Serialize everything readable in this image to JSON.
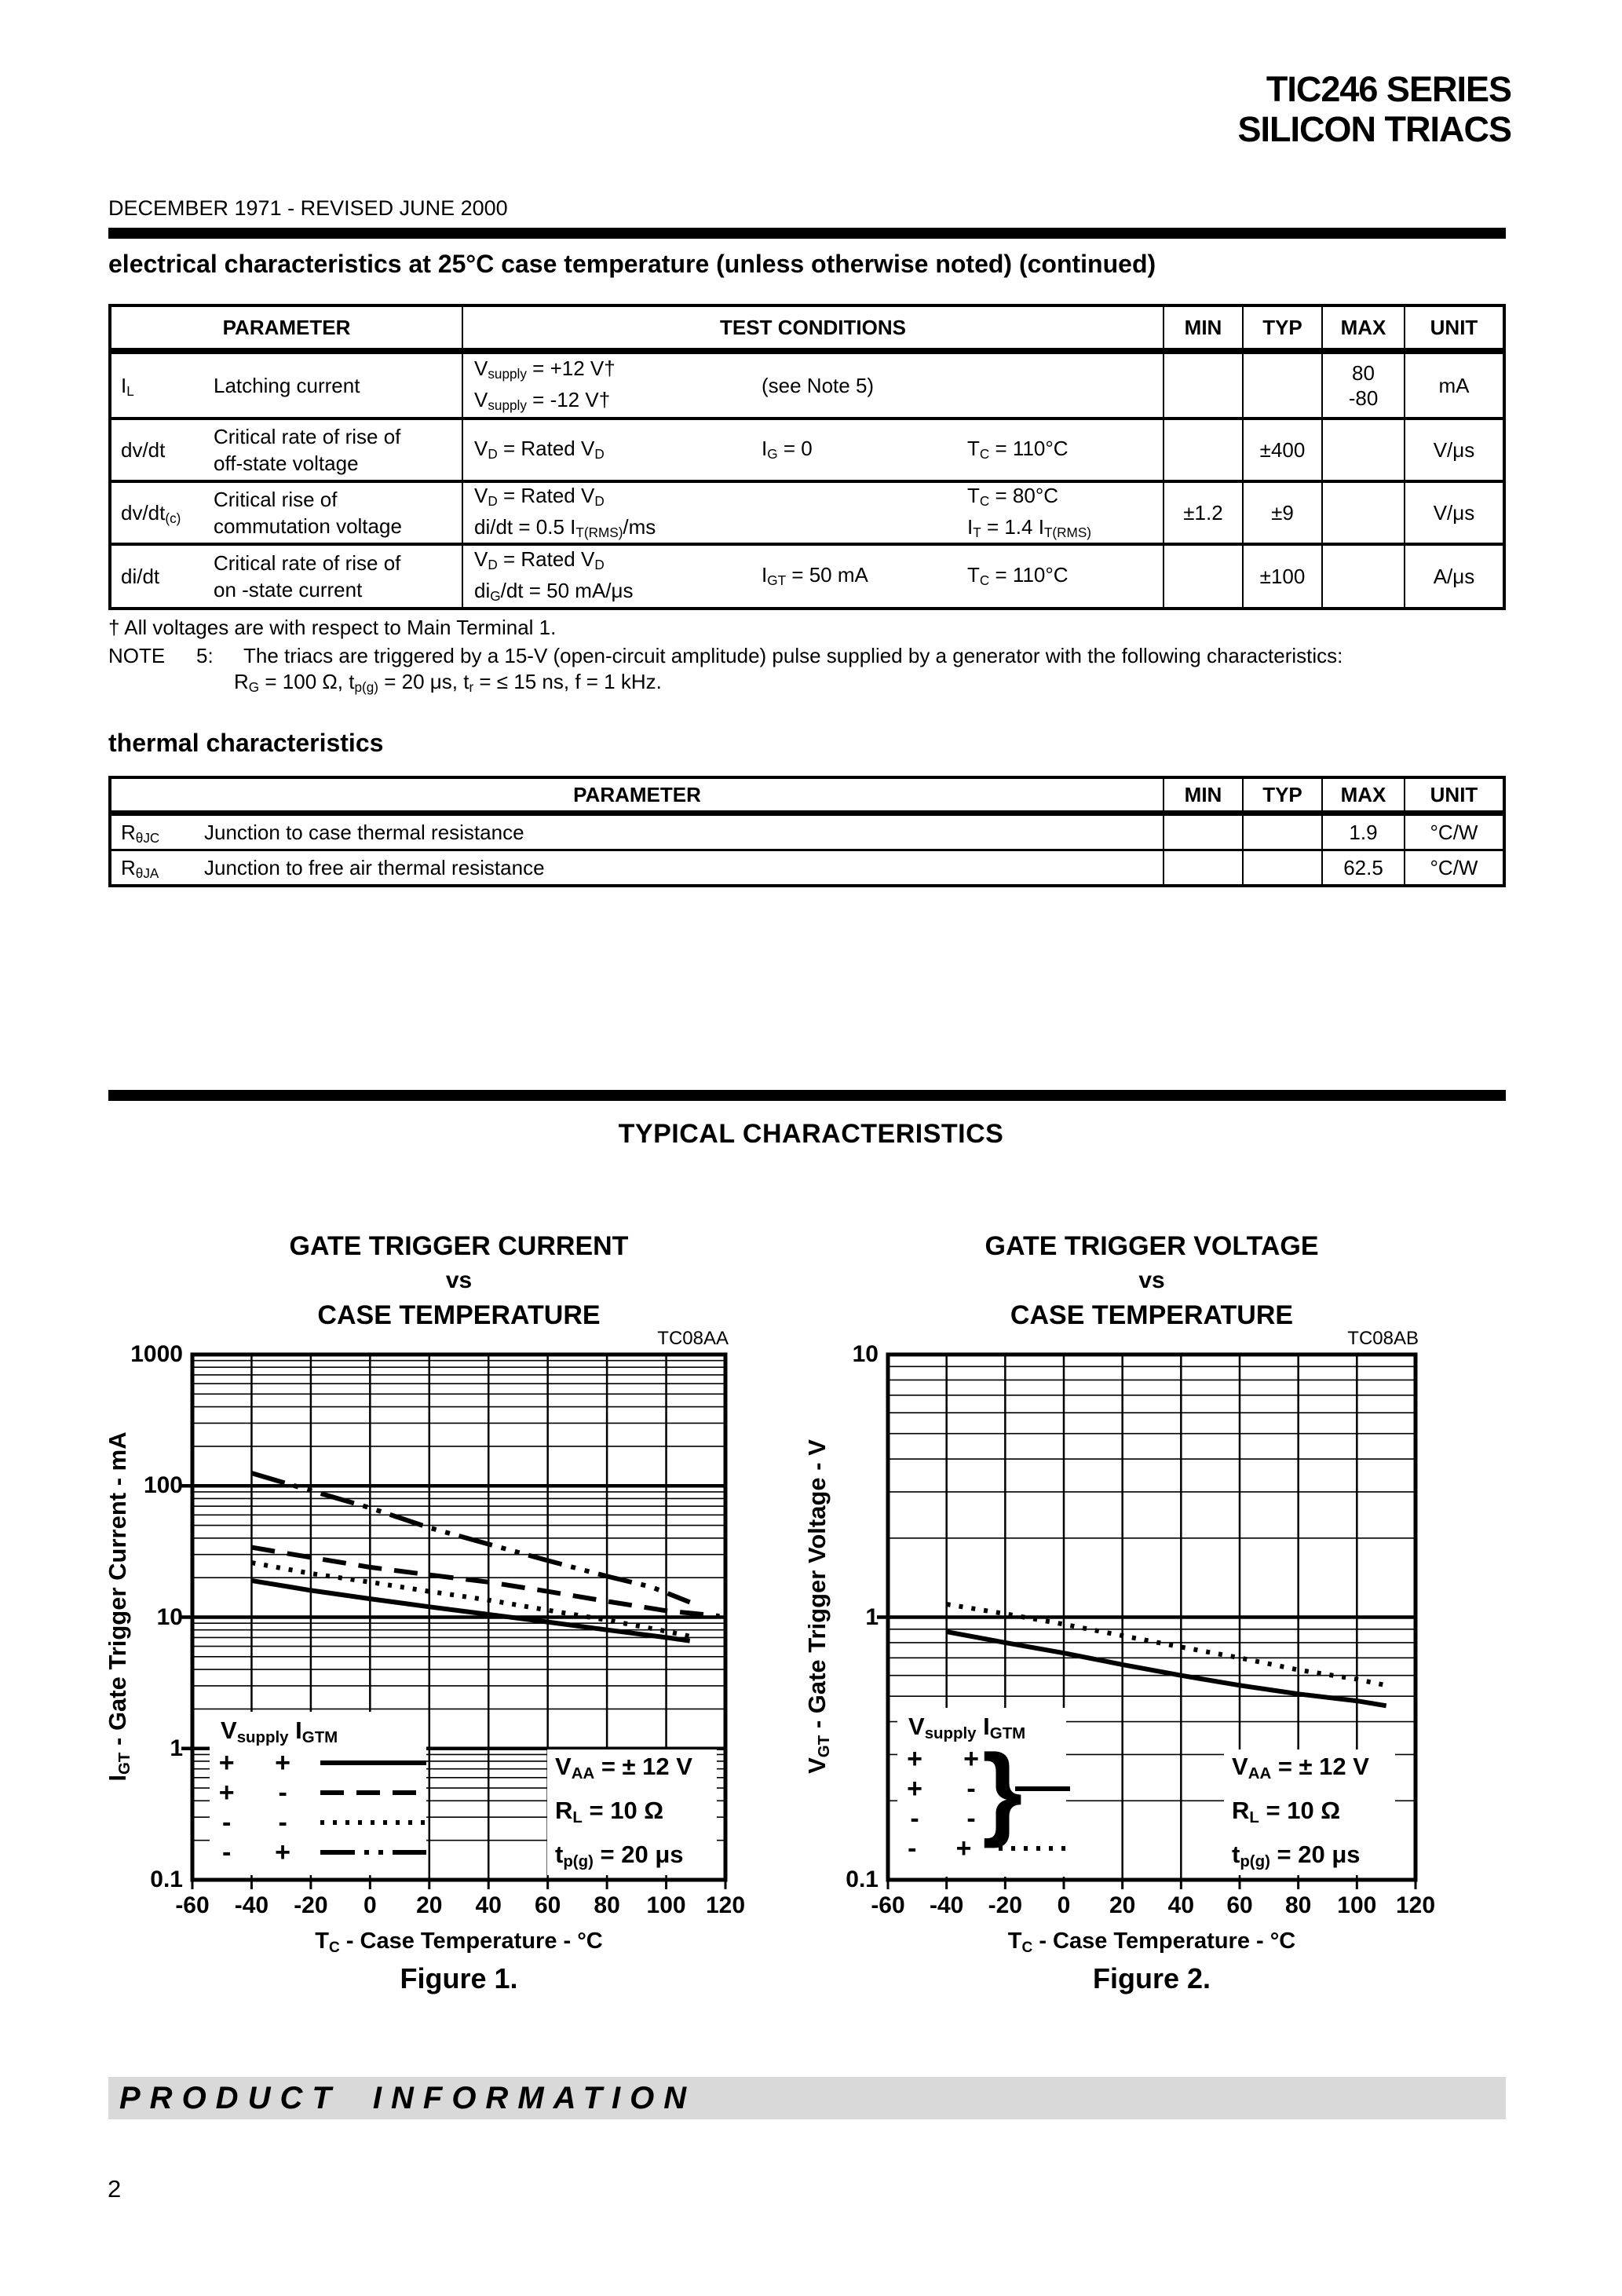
{
  "page": {
    "brand_line1": "TIC246 SERIES",
    "brand_line2": "SILICON TRIACS",
    "revision": "DECEMBER 1971 - REVISED JUNE 2000",
    "footer_banner": "PRODUCT INFORMATION",
    "page_number": "2",
    "colors": {
      "ink": "#000000",
      "footer_bar": "#d9d9d9",
      "paper": "#ffffff"
    }
  },
  "sections": {
    "electrical_title": "electrical characteristics at 25°C case temperature (unless otherwise noted) (continued)",
    "thermal_title": "thermal characteristics",
    "typical_title": "TYPICAL CHARACTERISTICS"
  },
  "electrical_table": {
    "headers": [
      "PARAMETER",
      "TEST CONDITIONS",
      "MIN",
      "TYP",
      "MAX",
      "UNIT"
    ],
    "rows": [
      {
        "symbol": [
          {
            "t": "I"
          },
          {
            "t": "L",
            "sub": true
          }
        ],
        "parameter": [
          "Latching current"
        ],
        "cond_left": [
          [
            {
              "t": "V"
            },
            {
              "t": "supply",
              "sub": true
            },
            {
              "t": " = +12 V†"
            }
          ],
          [
            {
              "t": "V"
            },
            {
              "t": "supply",
              "sub": true
            },
            {
              "t": " =  -12 V†"
            }
          ]
        ],
        "cond_mid": [
          [
            {
              "t": "(see Note 5)"
            }
          ]
        ],
        "cond_right": [],
        "min": [],
        "typ": [],
        "max": [
          "80",
          "-80"
        ],
        "unit": "mA"
      },
      {
        "symbol": [
          {
            "t": "dv/dt"
          }
        ],
        "parameter": [
          "Critical rate of rise of",
          "off-state voltage"
        ],
        "cond_left": [
          [
            {
              "t": "V"
            },
            {
              "t": "D",
              "sub": true
            },
            {
              "t": " = Rated V"
            },
            {
              "t": "D",
              "sub": true
            }
          ]
        ],
        "cond_mid": [
          [
            {
              "t": "I"
            },
            {
              "t": "G",
              "sub": true
            },
            {
              "t": " = 0"
            }
          ]
        ],
        "cond_right": [
          [
            {
              "t": "T"
            },
            {
              "t": "C",
              "sub": true
            },
            {
              "t": " = 110°C"
            }
          ]
        ],
        "min": [],
        "typ": [
          "±400"
        ],
        "max": [],
        "unit": "V/μs"
      },
      {
        "symbol": [
          {
            "t": "dv/dt"
          },
          {
            "t": "(c)",
            "sub": true
          }
        ],
        "parameter": [
          "Critical rise of",
          "commutation voltage"
        ],
        "cond_left": [
          [
            {
              "t": "V"
            },
            {
              "t": "D",
              "sub": true
            },
            {
              "t": " = Rated V"
            },
            {
              "t": "D",
              "sub": true
            }
          ],
          [
            {
              "t": "di/dt = 0.5 I"
            },
            {
              "t": "T(RMS)",
              "sub": true
            },
            {
              "t": "/ms"
            }
          ]
        ],
        "cond_mid": [],
        "cond_right": [
          [
            {
              "t": "T"
            },
            {
              "t": "C",
              "sub": true
            },
            {
              "t": " = 80°C"
            }
          ],
          [
            {
              "t": "I"
            },
            {
              "t": "T",
              "sub": true
            },
            {
              "t": " = 1.4 I"
            },
            {
              "t": "T(RMS)",
              "sub": true
            }
          ]
        ],
        "min": [
          "±1.2"
        ],
        "typ": [
          "±9"
        ],
        "max": [],
        "unit": "V/μs"
      },
      {
        "symbol": [
          {
            "t": "di/dt"
          }
        ],
        "parameter": [
          "Critical rate of rise of",
          "on -state current"
        ],
        "cond_left": [
          [
            {
              "t": "V"
            },
            {
              "t": "D",
              "sub": true
            },
            {
              "t": " = Rated V"
            },
            {
              "t": "D",
              "sub": true
            }
          ],
          [
            {
              "t": "di"
            },
            {
              "t": "G",
              "sub": true
            },
            {
              "t": "/dt = 50 mA/μs"
            }
          ]
        ],
        "cond_mid": [
          [
            {
              "t": "I"
            },
            {
              "t": "GT",
              "sub": true
            },
            {
              "t": " = 50 mA"
            }
          ]
        ],
        "cond_right": [
          [
            {
              "t": "T"
            },
            {
              "t": "C",
              "sub": true
            },
            {
              "t": " = 110°C"
            }
          ]
        ],
        "min": [],
        "typ": [
          "±100"
        ],
        "max": [],
        "unit": "A/μs"
      }
    ]
  },
  "notes": {
    "dagger": "† All voltages are with respect to Main Terminal 1.",
    "note5_label": "NOTE",
    "note5_number": "5:",
    "note5_text": "The triacs are triggered by a 15-V (open-circuit amplitude) pulse supplied by a generator with the following characteristics:",
    "note5_line2": [
      {
        "t": "R"
      },
      {
        "t": "G",
        "sub": true
      },
      {
        "t": " = 100 Ω, t"
      },
      {
        "t": "p(g)",
        "sub": true
      },
      {
        "t": " = 20 μs, t"
      },
      {
        "t": "r",
        "sub": true
      },
      {
        "t": " = ≤ 15 ns, f = 1 kHz."
      }
    ]
  },
  "thermal_table": {
    "headers": [
      "PARAMETER",
      "MIN",
      "TYP",
      "MAX",
      "UNIT"
    ],
    "rows": [
      {
        "symbol": [
          {
            "t": "R"
          },
          {
            "t": "θJC",
            "sub": true
          }
        ],
        "parameter": "Junction to case thermal resistance",
        "min": "",
        "typ": "",
        "max": "1.9",
        "unit": "°C/W"
      },
      {
        "symbol": [
          {
            "t": "R"
          },
          {
            "t": "θJA",
            "sub": true
          }
        ],
        "parameter": "Junction to free air thermal resistance",
        "min": "",
        "typ": "",
        "max": "62.5",
        "unit": "°C/W"
      }
    ]
  },
  "chart_data": [
    {
      "id": "figure-1",
      "type": "line",
      "title_lines": [
        "GATE TRIGGER CURRENT",
        "vs",
        "CASE TEMPERATURE"
      ],
      "code": "TC08AA",
      "xlabel": [
        {
          "t": "T"
        },
        {
          "t": "C",
          "sub": true
        },
        {
          "t": " - Case Temperature - °C"
        }
      ],
      "ylabel": [
        {
          "t": "I"
        },
        {
          "t": "GT",
          "sub": true
        },
        {
          "t": " - Gate Trigger Current - mA"
        }
      ],
      "caption": "Figure 1.",
      "x_axis": {
        "min": -60,
        "max": 120,
        "step": 20,
        "tick_labels": [
          "-60",
          "-40",
          "-20",
          "0",
          "20",
          "40",
          "60",
          "80",
          "100",
          "120"
        ]
      },
      "y_axis": {
        "scale": "log",
        "top": 1000,
        "decades": 4,
        "tick_labels": [
          "1000",
          "100",
          "10",
          "1",
          "0.1"
        ]
      },
      "grid": "log-minor-on",
      "legend": {
        "header": [
          {
            "t": "V"
          },
          {
            "t": "supply",
            "sub": true
          },
          {
            "t": " I"
          },
          {
            "t": "GTM",
            "sub": true
          }
        ],
        "rows": [
          {
            "signs": [
              "+",
              "+"
            ],
            "style": "solid"
          },
          {
            "signs": [
              "+",
              "-"
            ],
            "style": "longdash"
          },
          {
            "signs": [
              "-",
              "-"
            ],
            "style": "dotted"
          },
          {
            "signs": [
              "-",
              "+"
            ],
            "style": "dashdotdot"
          }
        ]
      },
      "annotation": [
        [
          {
            "t": "V"
          },
          {
            "t": "AA",
            "sub": true
          },
          {
            "t": " = ± 12 V"
          }
        ],
        [
          {
            "t": "R"
          },
          {
            "t": "L",
            "sub": true
          },
          {
            "t": " = 10 Ω"
          }
        ],
        [
          {
            "t": "t"
          },
          {
            "t": "p(g)",
            "sub": true
          },
          {
            "t": " = 20 μs"
          }
        ]
      ],
      "series": [
        {
          "name": "Vsupply+ IGTM+",
          "style": "solid",
          "points": [
            [
              -40,
              19
            ],
            [
              -20,
              16
            ],
            [
              0,
              13.8
            ],
            [
              20,
              12
            ],
            [
              40,
              10.5
            ],
            [
              60,
              9.2
            ],
            [
              80,
              8
            ],
            [
              100,
              7
            ],
            [
              108,
              6.6
            ]
          ]
        },
        {
          "name": "Vsupply+ IGTM-",
          "style": "longdash",
          "points": [
            [
              -40,
              34
            ],
            [
              -20,
              28.5
            ],
            [
              0,
              24
            ],
            [
              20,
              21
            ],
            [
              40,
              18.5
            ],
            [
              60,
              15.7
            ],
            [
              80,
              13.2
            ],
            [
              100,
              11.2
            ],
            [
              118,
              10.2
            ]
          ]
        },
        {
          "name": "Vsupply- IGTM-",
          "style": "dotted",
          "points": [
            [
              -40,
              26
            ],
            [
              -20,
              21.5
            ],
            [
              0,
              18.5
            ],
            [
              20,
              15.7
            ],
            [
              40,
              13.5
            ],
            [
              60,
              11.3
            ],
            [
              80,
              9.5
            ],
            [
              100,
              7.8
            ],
            [
              110,
              7
            ]
          ]
        },
        {
          "name": "Vsupply- IGTM+",
          "style": "dashdotdot",
          "points": [
            [
              -40,
              125
            ],
            [
              -20,
              92
            ],
            [
              0,
              68
            ],
            [
              20,
              48
            ],
            [
              40,
              36
            ],
            [
              60,
              27
            ],
            [
              80,
              20.5
            ],
            [
              95,
              17
            ],
            [
              108,
              13
            ]
          ]
        }
      ]
    },
    {
      "id": "figure-2",
      "type": "line",
      "title_lines": [
        "GATE TRIGGER VOLTAGE",
        "vs",
        "CASE TEMPERATURE"
      ],
      "code": "TC08AB",
      "xlabel": [
        {
          "t": "T"
        },
        {
          "t": "C",
          "sub": true
        },
        {
          "t": " - Case Temperature - °C"
        }
      ],
      "ylabel": [
        {
          "t": "V"
        },
        {
          "t": "GT",
          "sub": true
        },
        {
          "t": " - Gate Trigger Voltage - V"
        }
      ],
      "caption": "Figure 2.",
      "x_axis": {
        "min": -60,
        "max": 120,
        "step": 20,
        "tick_labels": [
          "-60",
          "-40",
          "-20",
          "0",
          "20",
          "40",
          "60",
          "80",
          "100",
          "120"
        ]
      },
      "y_axis": {
        "scale": "log",
        "top": 10,
        "decades": 2,
        "tick_labels": [
          "10",
          "1",
          "0.1"
        ]
      },
      "grid": "log-minor-on",
      "legend": {
        "header": [
          {
            "t": "V"
          },
          {
            "t": "supply",
            "sub": true
          },
          {
            "t": " I"
          },
          {
            "t": "GTM",
            "sub": true
          }
        ],
        "rows": [
          {
            "signs": [
              "+",
              "+"
            ]
          },
          {
            "signs": [
              "+",
              "-"
            ]
          },
          {
            "signs": [
              "-",
              "-"
            ]
          },
          {
            "signs": [
              "-",
              "+"
            ],
            "style": "dotted"
          }
        ],
        "group": {
          "rows": [
            0,
            2
          ],
          "style": "solid",
          "brace": "}"
        }
      },
      "annotation": [
        [
          {
            "t": "V"
          },
          {
            "t": "AA",
            "sub": true
          },
          {
            "t": " = ± 12 V"
          }
        ],
        [
          {
            "t": "R"
          },
          {
            "t": "L",
            "sub": true
          },
          {
            "t": " = 10 Ω"
          }
        ],
        [
          {
            "t": "t"
          },
          {
            "t": "p(g)",
            "sub": true
          },
          {
            "t": " = 20 μs"
          }
        ]
      ],
      "series": [
        {
          "name": "Vsupply± IGTM grouped",
          "style": "solid",
          "points": [
            [
              -40,
              0.88
            ],
            [
              -20,
              0.8
            ],
            [
              0,
              0.73
            ],
            [
              20,
              0.66
            ],
            [
              40,
              0.6
            ],
            [
              60,
              0.55
            ],
            [
              80,
              0.51
            ],
            [
              100,
              0.48
            ],
            [
              110,
              0.46
            ]
          ]
        },
        {
          "name": "Vsupply- IGTM+",
          "style": "dotted",
          "points": [
            [
              -40,
              1.12
            ],
            [
              -20,
              1.03
            ],
            [
              0,
              0.94
            ],
            [
              20,
              0.85
            ],
            [
              40,
              0.77
            ],
            [
              60,
              0.7
            ],
            [
              80,
              0.63
            ],
            [
              100,
              0.58
            ],
            [
              110,
              0.55
            ]
          ]
        }
      ]
    }
  ]
}
